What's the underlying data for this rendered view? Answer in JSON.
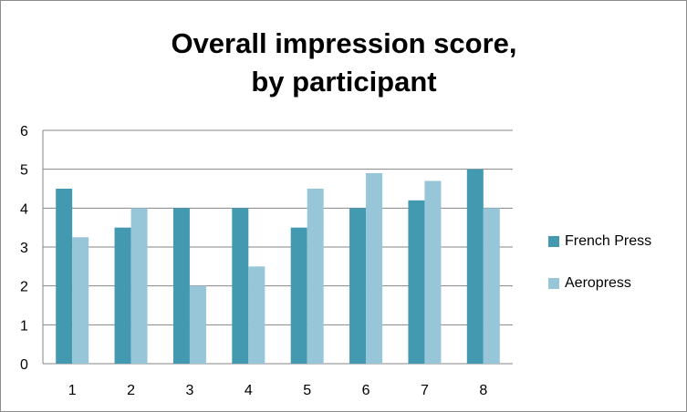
{
  "chart_data": {
    "type": "bar",
    "title_lines": [
      "Overall impression score,",
      "by participant"
    ],
    "categories": [
      "1",
      "2",
      "3",
      "4",
      "5",
      "6",
      "7",
      "8"
    ],
    "series": [
      {
        "name": "French Press",
        "color": "#4299b0",
        "values": [
          4.5,
          3.5,
          4,
          4,
          3.5,
          4,
          4.2,
          5
        ]
      },
      {
        "name": "Aeropress",
        "color": "#97c6d8",
        "values": [
          3.25,
          4,
          2,
          2.5,
          4.5,
          4.9,
          4.7,
          4
        ]
      }
    ],
    "ylim": [
      0,
      6
    ],
    "yticks": [
      "0",
      "1",
      "2",
      "3",
      "4",
      "5",
      "6"
    ],
    "grid": true,
    "legend_position": "right"
  }
}
